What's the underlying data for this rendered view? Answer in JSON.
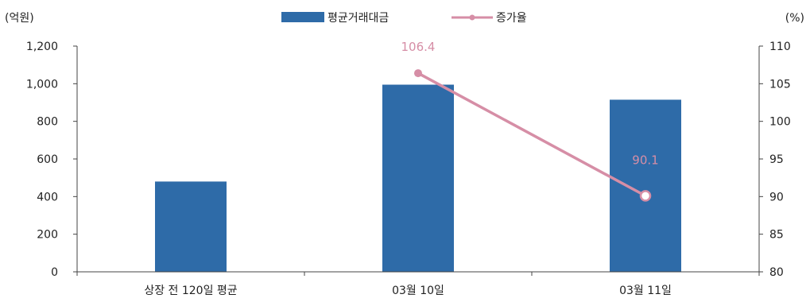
{
  "chart_data": {
    "type": "bar",
    "categories": [
      "상장 전 120일 평균",
      "03월 10일",
      "03월 11일"
    ],
    "series": [
      {
        "name": "평균거래대금",
        "type": "bar",
        "axis": "left",
        "values": [
          480,
          995,
          915
        ],
        "color": "#2E6BA8"
      },
      {
        "name": "증가율",
        "type": "line",
        "axis": "right",
        "values": [
          null,
          106.4,
          90.1
        ],
        "labels": [
          "",
          "106.4",
          "90.1"
        ],
        "color": "#D68EA6"
      }
    ],
    "left_axis": {
      "unit_label": "(억원)",
      "range": [
        0,
        1200
      ],
      "ticks": [
        0,
        200,
        400,
        600,
        800,
        1000,
        1200
      ],
      "tick_labels": [
        "0",
        "200",
        "400",
        "600",
        "800",
        "1,000",
        "1,200"
      ]
    },
    "right_axis": {
      "unit_label": "(%)",
      "range": [
        80,
        110
      ],
      "ticks": [
        80,
        85,
        90,
        95,
        100,
        105,
        110
      ],
      "tick_labels": [
        "80",
        "85",
        "90",
        "95",
        "100",
        "105",
        "110"
      ]
    },
    "legend_position": "top-center",
    "grid": false
  }
}
